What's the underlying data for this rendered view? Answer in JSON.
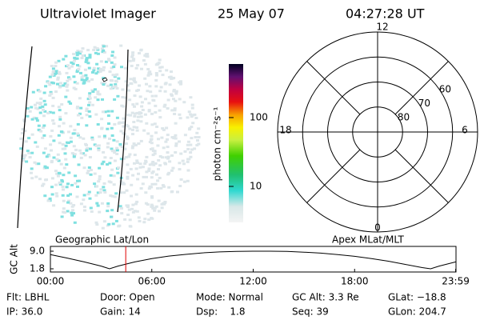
{
  "header": {
    "title": "Ultraviolet Imager",
    "date": "25 May 07",
    "time": "04:27:28 UT"
  },
  "colorbar": {
    "label": "photon cm⁻²s⁻¹",
    "scale": "log",
    "lim": [
      3,
      600
    ],
    "ticks": [
      10,
      100
    ]
  },
  "polar": {
    "lim": [
      90,
      50
    ],
    "rings": [
      80,
      70,
      60
    ],
    "clock_labels": [
      "12",
      "18",
      "6",
      "0"
    ]
  },
  "altitude": {
    "type": "line",
    "ylabel": "GC Alt",
    "left_label": "Geographic Lat/Lon",
    "right_label": "Apex MLat/MLT",
    "x": [
      0,
      1,
      2,
      3,
      3.5,
      4,
      5,
      6,
      7,
      8,
      9,
      10,
      11,
      12,
      13,
      14,
      15,
      16,
      17,
      18,
      19,
      20,
      21,
      22,
      22.5,
      23,
      23.98
    ],
    "values": [
      7.6,
      6.2,
      4.6,
      2.9,
      1.8,
      2.9,
      4.6,
      6.0,
      7.0,
      7.7,
      8.3,
      8.7,
      8.9,
      9.0,
      9.0,
      8.9,
      8.6,
      8.2,
      7.6,
      6.9,
      6.0,
      4.9,
      3.6,
      2.3,
      1.8,
      2.9,
      4.6
    ],
    "xlim": [
      0,
      24
    ],
    "ylim": [
      1.8,
      9.0
    ],
    "yticks": [
      {
        "value": 9,
        "label": "9.0"
      },
      1.8
    ],
    "xticks": [
      {
        "value": 0,
        "label": "00:00"
      },
      {
        "value": 6,
        "label": "06:00"
      },
      {
        "value": 12,
        "label": "12:00"
      },
      {
        "value": 18,
        "label": "18:00"
      },
      {
        "value": 23.98,
        "label": "23:59"
      }
    ],
    "current_time": 4.458,
    "current_color": "#e00000"
  },
  "status": [
    [
      "Flt: LBHL",
      "Door: Open",
      "Mode: Normal",
      "GC Alt: 3.3 Re",
      "GLat: −18.8"
    ],
    [
      "IP: 36.0",
      "Gain: 14",
      "Dsp:    1.8",
      "Seq: 39",
      "GLon: 204.7"
    ]
  ]
}
